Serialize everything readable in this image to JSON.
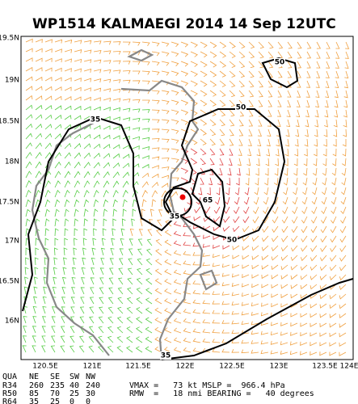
{
  "title": "WP1514   KALMAEGI 2014 14 Sep 12UTC",
  "lat_labels": [
    "19.5N",
    "19N",
    "18.5N",
    "18N",
    "17.5N",
    "17N",
    "16.5N",
    "16N"
  ],
  "lon_labels": [
    "120.5E",
    "121E",
    "121.5E",
    "122E",
    "122.5E",
    "123E",
    "123.5E",
    "124E"
  ],
  "contour_labels": [
    "35",
    "50",
    "50",
    "65",
    "35",
    "50",
    "35"
  ],
  "table": {
    "header": [
      "QUA",
      "NE",
      "SE",
      "SW",
      "NW"
    ],
    "rows": [
      [
        "R34",
        260,
        235,
        40,
        240
      ],
      [
        "R50",
        85,
        70,
        25,
        30
      ],
      [
        "R64",
        35,
        25,
        0,
        0
      ]
    ]
  },
  "stats": [
    "VMAX =   73 kt MSLP =  966.4 hPa",
    "RMW  =   18 nmi BEARING =   40 degrees"
  ]
}
